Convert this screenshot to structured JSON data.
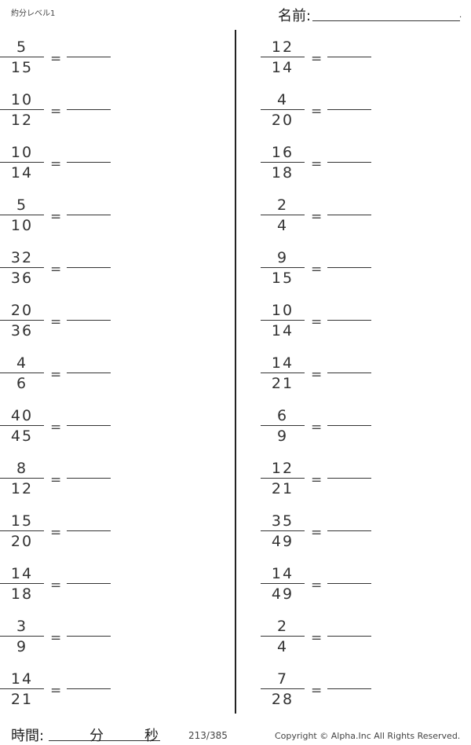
{
  "header": {
    "title": "約分レベル1",
    "name_label": "名前:",
    "name_end": "."
  },
  "left_problems": [
    {
      "num": "5",
      "den": "15"
    },
    {
      "num": "10",
      "den": "12"
    },
    {
      "num": "10",
      "den": "14"
    },
    {
      "num": "5",
      "den": "10"
    },
    {
      "num": "32",
      "den": "36"
    },
    {
      "num": "20",
      "den": "36"
    },
    {
      "num": "4",
      "den": "6"
    },
    {
      "num": "40",
      "den": "45"
    },
    {
      "num": "8",
      "den": "12"
    },
    {
      "num": "15",
      "den": "20"
    },
    {
      "num": "14",
      "den": "18"
    },
    {
      "num": "3",
      "den": "9"
    },
    {
      "num": "14",
      "den": "21"
    }
  ],
  "right_problems": [
    {
      "num": "12",
      "den": "14"
    },
    {
      "num": "4",
      "den": "20"
    },
    {
      "num": "16",
      "den": "18"
    },
    {
      "num": "2",
      "den": "4"
    },
    {
      "num": "9",
      "den": "15"
    },
    {
      "num": "10",
      "den": "14"
    },
    {
      "num": "14",
      "den": "21"
    },
    {
      "num": "6",
      "den": "9"
    },
    {
      "num": "12",
      "den": "21"
    },
    {
      "num": "35",
      "den": "49"
    },
    {
      "num": "14",
      "den": "49"
    },
    {
      "num": "2",
      "den": "4"
    },
    {
      "num": "7",
      "den": "28"
    }
  ],
  "equals": "=",
  "footer": {
    "time_label": "時間:",
    "minutes": "分",
    "seconds": "秒",
    "page": "213/385",
    "copyright": "Copyright ©  Alpha.Inc All Rights Reserved."
  }
}
